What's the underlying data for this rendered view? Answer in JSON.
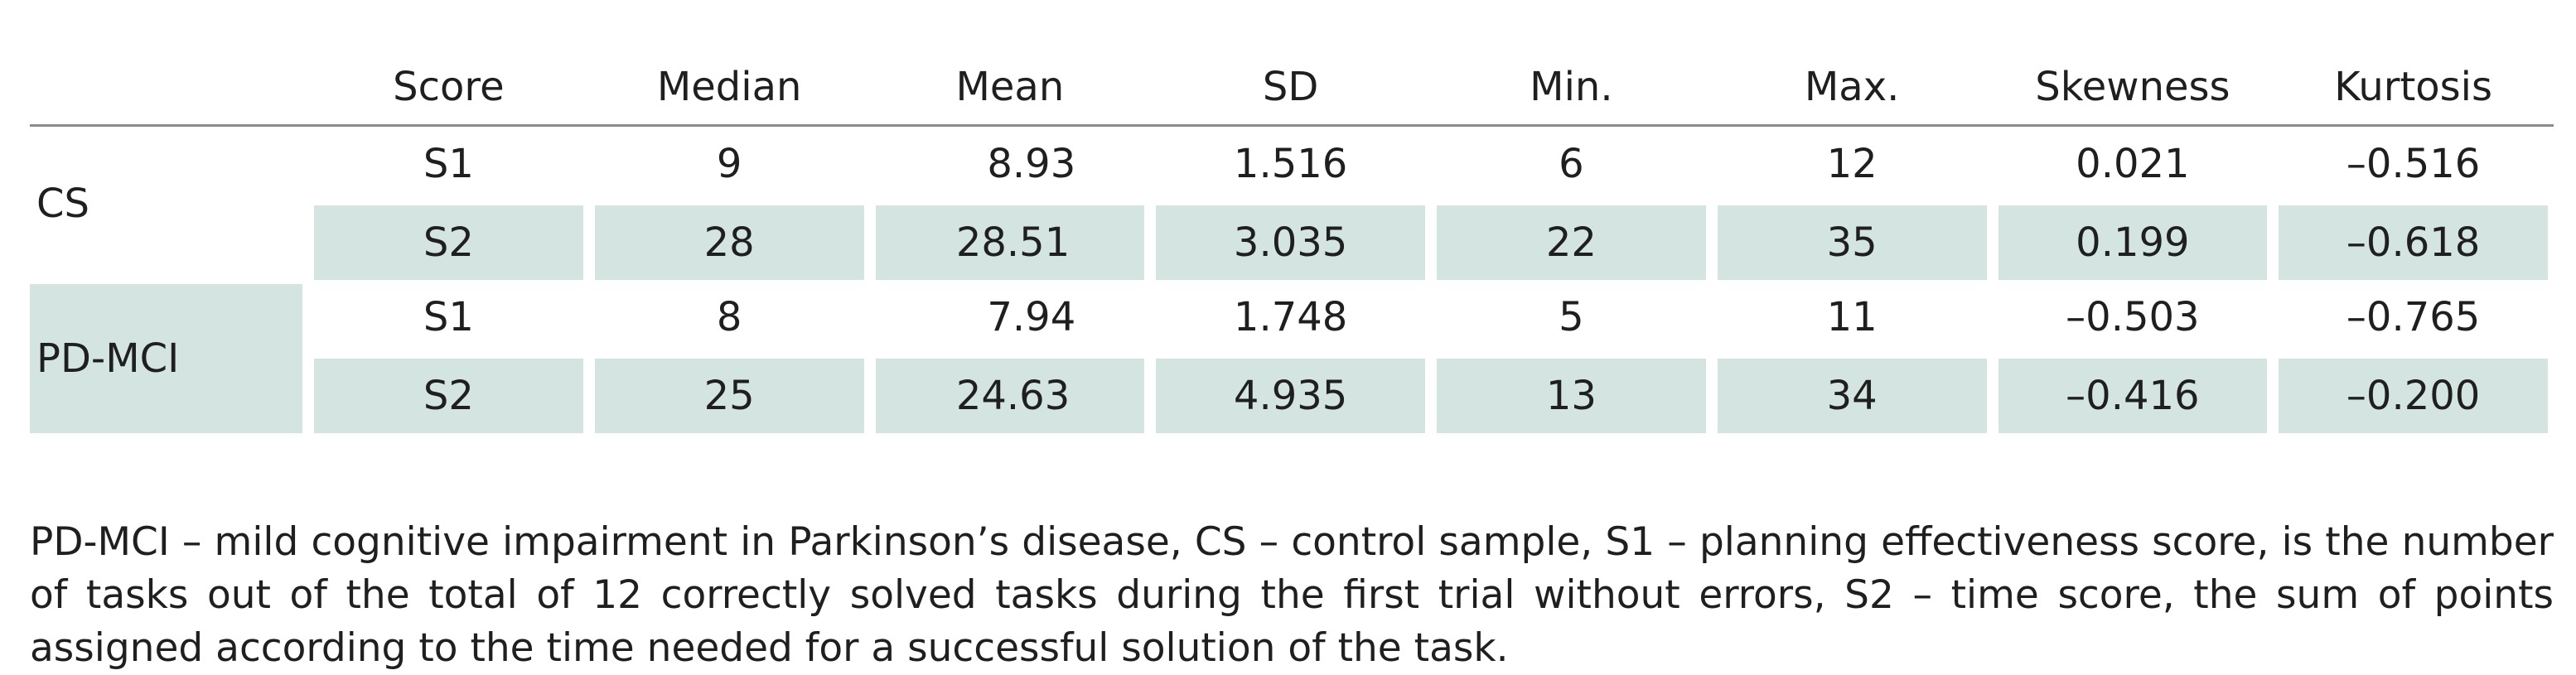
{
  "table": {
    "headers": [
      "Score",
      "Median",
      "Mean",
      "SD",
      "Min.",
      "Max.",
      "Skewness",
      "Kurtosis"
    ],
    "groups": [
      {
        "label": "CS",
        "rows": [
          {
            "score": "S1",
            "median": "9",
            "mean": "8.93",
            "sd": "1.516",
            "min": "6",
            "max": "12",
            "skewness": "0.021",
            "kurtosis": "–0.516"
          },
          {
            "score": "S2",
            "median": "28",
            "mean": "28.51",
            "sd": "3.035",
            "min": "22",
            "max": "35",
            "skewness": "0.199",
            "kurtosis": "–0.618"
          }
        ]
      },
      {
        "label": "PD-MCI",
        "rows": [
          {
            "score": "S1",
            "median": "8",
            "mean": "7.94",
            "sd": "1.748",
            "min": "5",
            "max": "11",
            "skewness": "–0.503",
            "kurtosis": "–0.765"
          },
          {
            "score": "S2",
            "median": "25",
            "mean": "24.63",
            "sd": "4.935",
            "min": "13",
            "max": "34",
            "skewness": "–0.416",
            "kurtosis": "–0.200"
          }
        ]
      }
    ]
  },
  "footnote": "PD-MCI – mild cognitive impairment in Parkinson’s disease, CS – control sample, S1 – planning effectiveness score, is the number of tasks out of the total of 12 correctly solved tasks during the first trial without errors, S2 – time score, the sum of points assigned according to the time needed for a successful solution of the task.",
  "colors": {
    "shade": "#d3e4e1",
    "rule": "#8c8c8c",
    "text": "#1f1f1f"
  }
}
